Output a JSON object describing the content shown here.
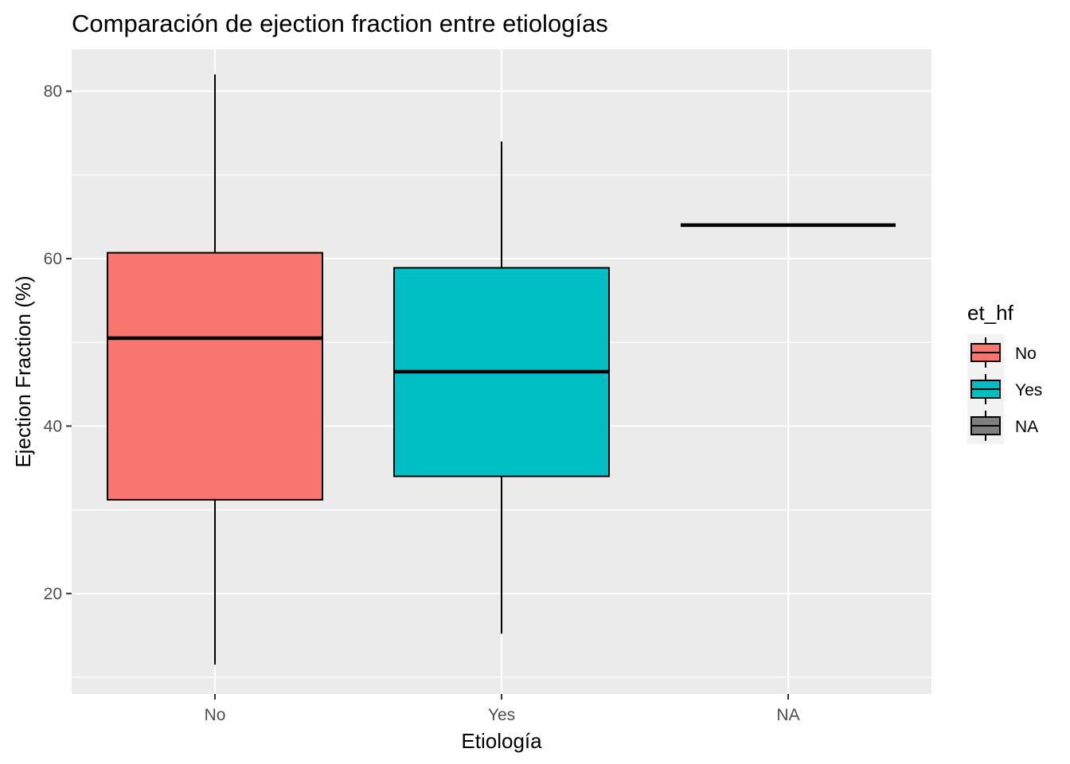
{
  "chart_data": {
    "type": "boxplot",
    "title": "Comparación de ejection fraction entre etiologías",
    "xlabel": "Etiología",
    "ylabel": "Ejection Fraction (%)",
    "categories": [
      "No",
      "Yes",
      "NA"
    ],
    "ylim": [
      8,
      85
    ],
    "yticks": [
      20,
      40,
      60,
      80
    ],
    "grid": true,
    "legend": {
      "title": "et_hf",
      "position": "right",
      "entries": [
        {
          "label": "No",
          "color": "#F8766D"
        },
        {
          "label": "Yes",
          "color": "#00BFC4"
        },
        {
          "label": "NA",
          "color": "#7F7F7F"
        }
      ]
    },
    "boxes": [
      {
        "category": "No",
        "min": 11.5,
        "q1": 31.2,
        "median": 50.5,
        "q3": 60.7,
        "max": 82.0,
        "fill": "#F8766D"
      },
      {
        "category": "Yes",
        "min": 15.2,
        "q1": 34.0,
        "median": 46.5,
        "q3": 58.9,
        "max": 74.0,
        "fill": "#00BFC4"
      },
      {
        "category": "NA",
        "min": 64.0,
        "q1": 64.0,
        "median": 64.0,
        "q3": 64.0,
        "max": 64.0,
        "fill": "#7F7F7F"
      }
    ]
  },
  "colors": {
    "panel_background": "#EBEBEB",
    "grid": "#FFFFFF",
    "tick_text": "#4D4D4D",
    "axis_ticks": "#333333"
  }
}
